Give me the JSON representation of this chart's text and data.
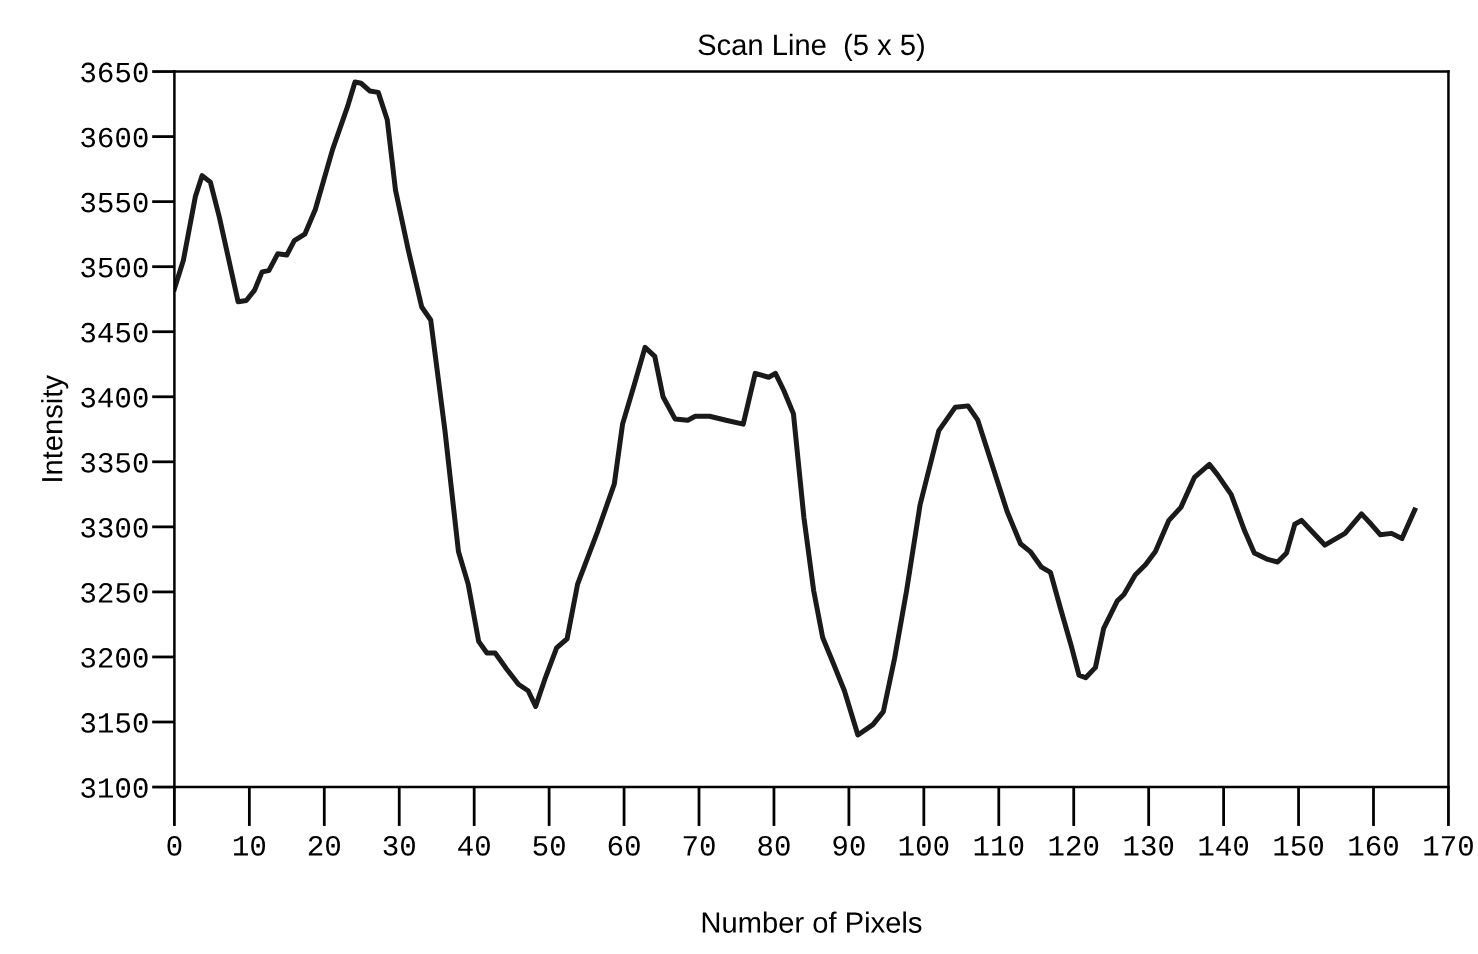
{
  "chart_data": {
    "type": "line",
    "title": "Scan Line  (5 x 5)",
    "xlabel": "Number of Pixels",
    "ylabel": "Intensity",
    "xlim": [
      0,
      170
    ],
    "xticks": [
      0,
      10,
      20,
      30,
      40,
      50,
      60,
      70,
      80,
      90,
      100,
      110,
      120,
      130,
      140,
      150,
      160,
      170
    ],
    "ylim": [
      3100,
      3650
    ],
    "yticks": [
      3100,
      3150,
      3200,
      3250,
      3300,
      3350,
      3400,
      3450,
      3500,
      3550,
      3600,
      3650
    ],
    "grid": false,
    "marker": "none",
    "line_style": "solid",
    "series": [
      {
        "color": "#1a1a1a",
        "x": [
          0,
          1.2,
          2.8,
          3.7,
          4.8,
          6,
          8.5,
          9.6,
          10.7,
          11.7,
          12.6,
          13.8,
          15,
          16,
          17.4,
          18.8,
          21.1,
          23.1,
          24.1,
          24.9,
          26.1,
          27.2,
          28.4,
          29.5,
          31.2,
          33,
          34.2,
          36.1,
          37.9,
          39.2,
          40.6,
          41.7,
          42.8,
          44.3,
          45.9,
          47.2,
          48.2,
          49.5,
          51,
          52.4,
          53.8,
          56.5,
          58.7,
          59.8,
          61.4,
          62.8,
          64.1,
          65.2,
          66.8,
          68.5,
          69.5,
          71.4,
          73.6,
          75.9,
          77.5,
          79.3,
          80.2,
          81.3,
          82.6,
          84,
          85.3,
          86.5,
          88,
          89.4,
          91.2,
          93.2,
          94.6,
          96.1,
          97.7,
          99.5,
          102,
          104.2,
          105.9,
          107.2,
          109.1,
          111.1,
          112.9,
          114.2,
          115.7,
          116.9,
          118.2,
          119.6,
          120.7,
          121.6,
          122.9,
          124,
          125.8,
          126.7,
          128.2,
          129.6,
          130.9,
          132.7,
          134.3,
          136.1,
          138.1,
          139.2,
          141,
          142.8,
          144.1,
          145.9,
          147.2,
          148.4,
          149.5,
          150.4,
          151.7,
          153.5,
          156.2,
          158.4,
          159.7,
          160.9,
          162.4,
          163.8,
          165.5
        ],
        "values": [
          3483,
          3505,
          3554,
          3570,
          3565,
          3538,
          3473,
          3474,
          3482,
          3496,
          3497,
          3510,
          3509,
          3520,
          3525,
          3544,
          3590,
          3623,
          3642,
          3641,
          3635,
          3634,
          3613,
          3559,
          3513,
          3469,
          3459,
          3374,
          3281,
          3256,
          3212,
          3203,
          3203,
          3191,
          3179,
          3174,
          3162,
          3184,
          3207,
          3214,
          3256,
          3297,
          3333,
          3379,
          3410,
          3438,
          3431,
          3400,
          3383,
          3382,
          3385,
          3385,
          3382,
          3379,
          3418,
          3415,
          3418,
          3405,
          3387,
          3307,
          3251,
          3215,
          3194,
          3174,
          3140,
          3148,
          3158,
          3199,
          3251,
          3317,
          3374,
          3392,
          3393,
          3382,
          3348,
          3312,
          3287,
          3281,
          3269,
          3265,
          3238,
          3210,
          3186,
          3184,
          3192,
          3222,
          3243,
          3248,
          3263,
          3271,
          3281,
          3305,
          3315,
          3338,
          3348,
          3340,
          3325,
          3297,
          3280,
          3275,
          3273,
          3280,
          3302,
          3305,
          3297,
          3286,
          3295,
          3310,
          3302,
          3294,
          3295,
          3291,
          3313
        ]
      }
    ]
  }
}
